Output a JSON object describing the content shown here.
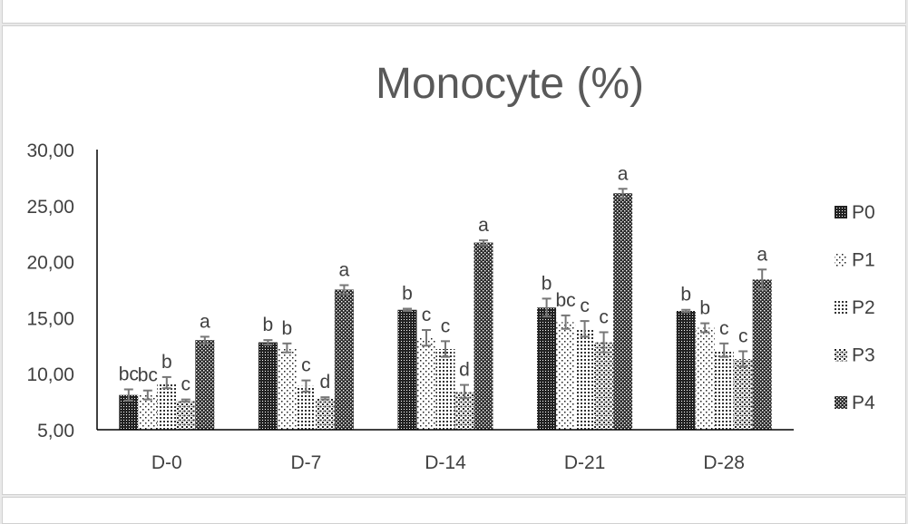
{
  "chart_data": {
    "type": "bar",
    "title": "Monocyte (%)",
    "categories": [
      "D-0",
      "D-7",
      "D-14",
      "D-21",
      "D-28"
    ],
    "ylim": [
      5,
      30
    ],
    "yticks": [
      "5,00",
      "10,00",
      "15,00",
      "20,00",
      "25,00",
      "30,00"
    ],
    "ytick_values": [
      5,
      10,
      15,
      20,
      25,
      30
    ],
    "grid": false,
    "legend_position": "right",
    "series": [
      {
        "name": "P0",
        "pattern": "dense-dots",
        "values": [
          8.1,
          12.8,
          15.7,
          15.9,
          15.6
        ],
        "errors": [
          0.5,
          0.2,
          0.1,
          0.8,
          0.1
        ],
        "letters": [
          "bc",
          "b",
          "b",
          "b",
          "b"
        ]
      },
      {
        "name": "P1",
        "pattern": "sparse-dots",
        "values": [
          8.1,
          12.3,
          13.2,
          14.6,
          14.1
        ],
        "errors": [
          0.4,
          0.4,
          0.7,
          0.6,
          0.4
        ],
        "letters": [
          "bc",
          "b",
          "c",
          "bc",
          "b"
        ]
      },
      {
        "name": "P2",
        "pattern": "grid-dots",
        "values": [
          9.2,
          8.9,
          12.2,
          14.0,
          12.1
        ],
        "errors": [
          0.5,
          0.5,
          0.7,
          0.7,
          0.6
        ],
        "letters": [
          "b",
          "c",
          "c",
          "c",
          "c"
        ]
      },
      {
        "name": "P3",
        "pattern": "diag-dots",
        "values": [
          7.6,
          7.8,
          8.4,
          12.8,
          11.3
        ],
        "errors": [
          0.1,
          0.1,
          0.6,
          0.9,
          0.7
        ],
        "letters": [
          "c",
          "d",
          "d",
          "c",
          "c"
        ]
      },
      {
        "name": "P4",
        "pattern": "checker-dots",
        "values": [
          13.0,
          17.5,
          21.7,
          26.1,
          18.4
        ],
        "errors": [
          0.3,
          0.4,
          0.2,
          0.4,
          0.9
        ],
        "letters": [
          "a",
          "a",
          "a",
          "a",
          "a"
        ]
      }
    ]
  }
}
